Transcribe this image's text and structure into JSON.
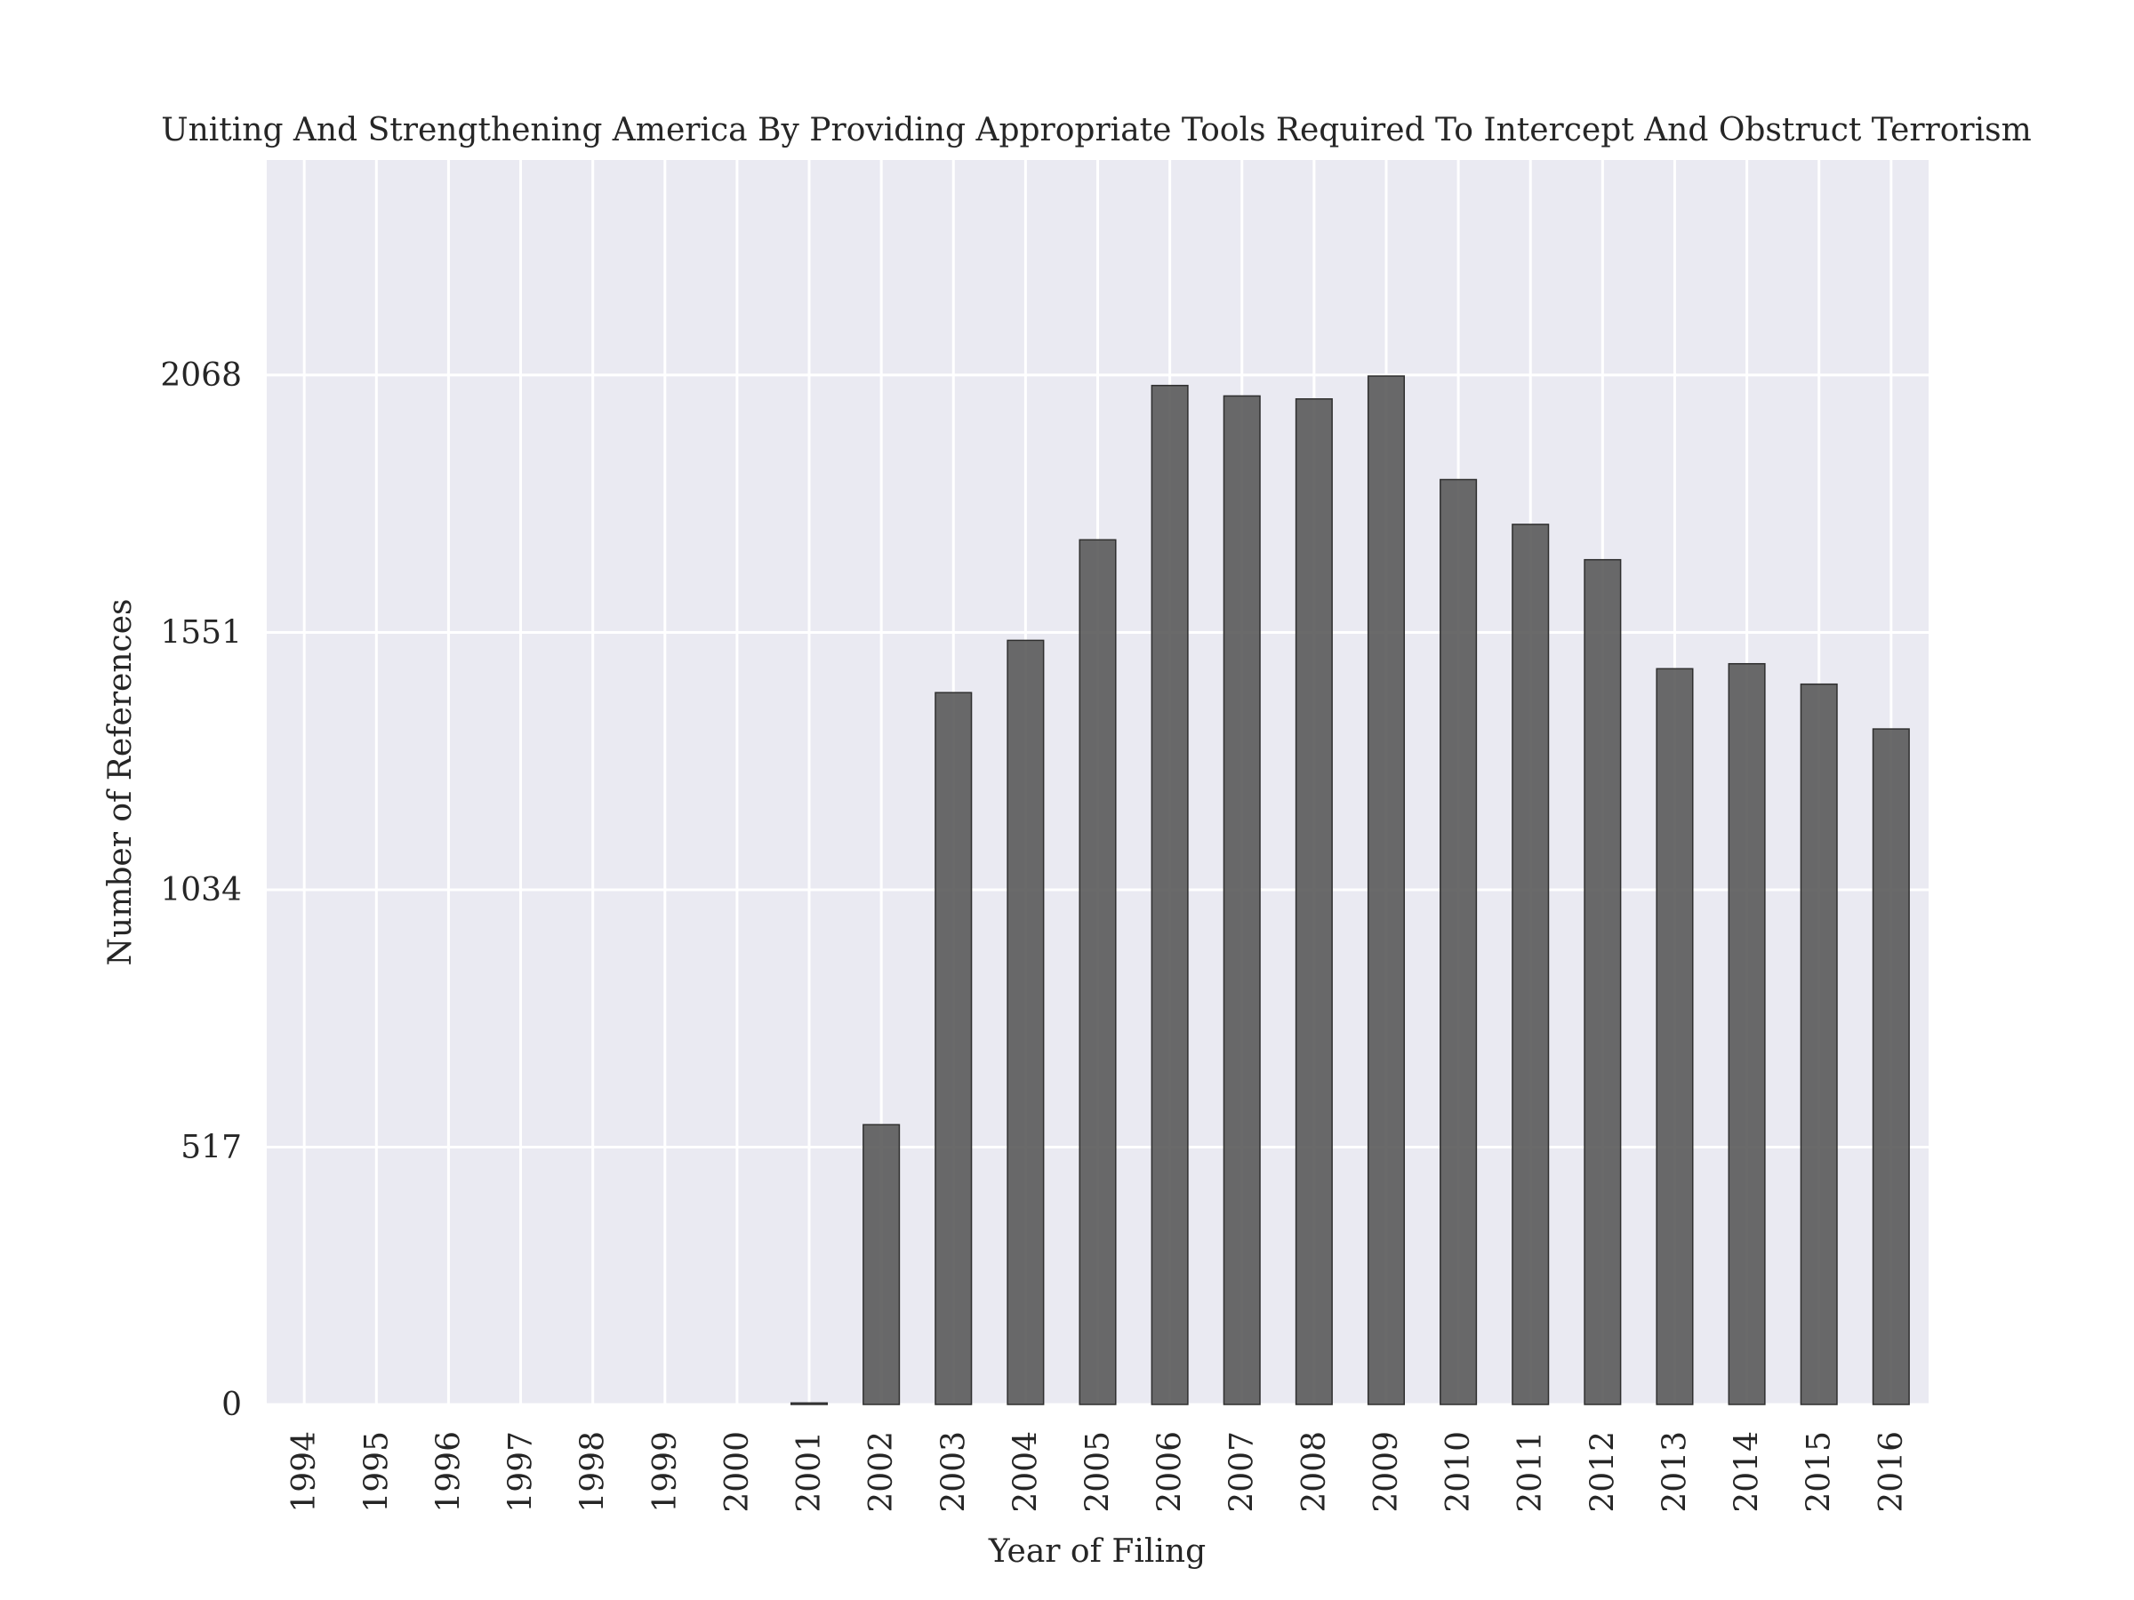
{
  "chart_data": {
    "type": "bar",
    "title": "Uniting And Strengthening America By Providing Appropriate Tools Required To Intercept And Obstruct Terrorism",
    "xlabel": "Year of Filing",
    "ylabel": "Number of References",
    "categories": [
      "1994",
      "1995",
      "1996",
      "1997",
      "1998",
      "1999",
      "2000",
      "2001",
      "2002",
      "2003",
      "2004",
      "2005",
      "2006",
      "2007",
      "2008",
      "2009",
      "2010",
      "2011",
      "2012",
      "2013",
      "2014",
      "2015",
      "2016"
    ],
    "values": [
      0,
      0,
      0,
      0,
      0,
      0,
      0,
      3,
      562,
      1430,
      1535,
      1737,
      2047,
      2026,
      2020,
      2066,
      1858,
      1768,
      1697,
      1478,
      1488,
      1447,
      1357
    ],
    "yticks": [
      0,
      517,
      1034,
      1551,
      2068
    ],
    "ylim": [
      0,
      2500
    ],
    "grid": true,
    "colors": {
      "bar": "#555555",
      "bar_edge": "#2f2f2f",
      "plot_bg": "#eaeaf2",
      "grid": "#ffffff"
    }
  }
}
